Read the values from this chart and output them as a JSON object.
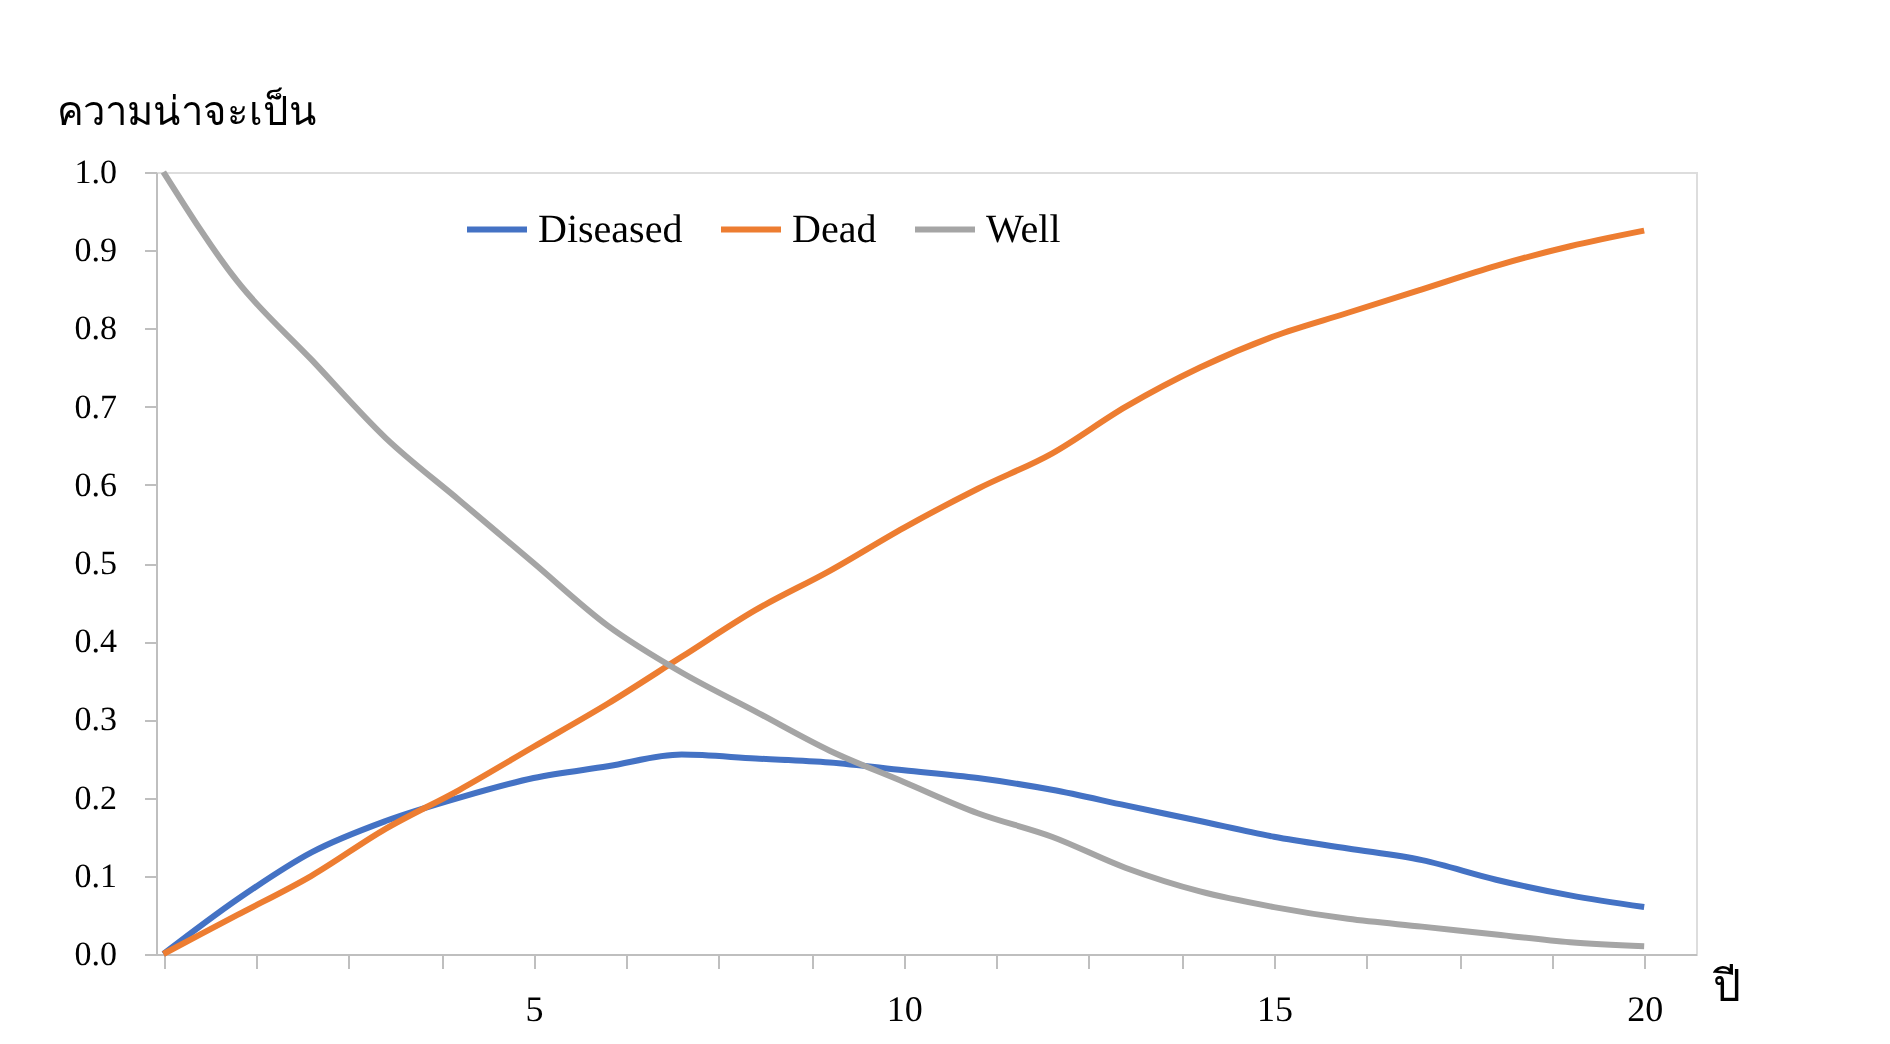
{
  "chart_data": {
    "type": "line",
    "xlabel": "ปี",
    "ylabel": "ความน่าจะเป็น",
    "x": [
      0,
      1,
      2,
      3,
      4,
      5,
      6,
      7,
      8,
      9,
      10,
      11,
      12,
      13,
      14,
      15,
      16,
      17,
      18,
      19,
      20
    ],
    "xlim": [
      -0.1,
      20.7
    ],
    "xticks": [
      {
        "value": 0,
        "label": null
      },
      {
        "value": 1.25,
        "label": null
      },
      {
        "value": 2.5,
        "label": null
      },
      {
        "value": 3.75,
        "label": null
      },
      {
        "value": 5,
        "label": "5"
      },
      {
        "value": 6.25,
        "label": null
      },
      {
        "value": 7.5,
        "label": null
      },
      {
        "value": 8.75,
        "label": null
      },
      {
        "value": 10,
        "label": "10"
      },
      {
        "value": 11.25,
        "label": null
      },
      {
        "value": 12.5,
        "label": null
      },
      {
        "value": 13.75,
        "label": null
      },
      {
        "value": 15,
        "label": "15"
      },
      {
        "value": 16.25,
        "label": null
      },
      {
        "value": 17.5,
        "label": null
      },
      {
        "value": 18.75,
        "label": null
      },
      {
        "value": 20,
        "label": "20"
      }
    ],
    "ylim": [
      0,
      1
    ],
    "yticks": [
      {
        "value": 0,
        "label": "0.0"
      },
      {
        "value": 0.1,
        "label": "0.1"
      },
      {
        "value": 0.2,
        "label": "0.2"
      },
      {
        "value": 0.3,
        "label": "0.3"
      },
      {
        "value": 0.4,
        "label": "0.4"
      },
      {
        "value": 0.5,
        "label": "0.5"
      },
      {
        "value": 0.6,
        "label": "0.6"
      },
      {
        "value": 0.7,
        "label": "0.7"
      },
      {
        "value": 0.8,
        "label": "0.8"
      },
      {
        "value": 0.9,
        "label": "0.9"
      },
      {
        "value": 1,
        "label": "1.0"
      }
    ],
    "grid": false,
    "legend": "top",
    "marker": "none",
    "line_style": "solid",
    "series": [
      {
        "name": "Diseased",
        "color": "#4472c4",
        "values": [
          0,
          0.07,
          0.13,
          0.17,
          0.2,
          0.225,
          0.24,
          0.255,
          0.25,
          0.245,
          0.235,
          0.225,
          0.21,
          0.19,
          0.17,
          0.15,
          0.135,
          0.12,
          0.095,
          0.075,
          0.06
        ]
      },
      {
        "name": "Dead",
        "color": "#ed7d31",
        "values": [
          0,
          0.05,
          0.1,
          0.16,
          0.21,
          0.265,
          0.32,
          0.38,
          0.44,
          0.49,
          0.545,
          0.595,
          0.64,
          0.7,
          0.75,
          0.79,
          0.82,
          0.85,
          0.88,
          0.905,
          0.925
        ]
      },
      {
        "name": "Well",
        "color": "#a5a5a5",
        "values": [
          1.0,
          0.86,
          0.76,
          0.66,
          0.58,
          0.5,
          0.42,
          0.36,
          0.31,
          0.26,
          0.22,
          0.18,
          0.15,
          0.11,
          0.08,
          0.06,
          0.045,
          0.035,
          0.025,
          0.015,
          0.01
        ]
      }
    ]
  }
}
